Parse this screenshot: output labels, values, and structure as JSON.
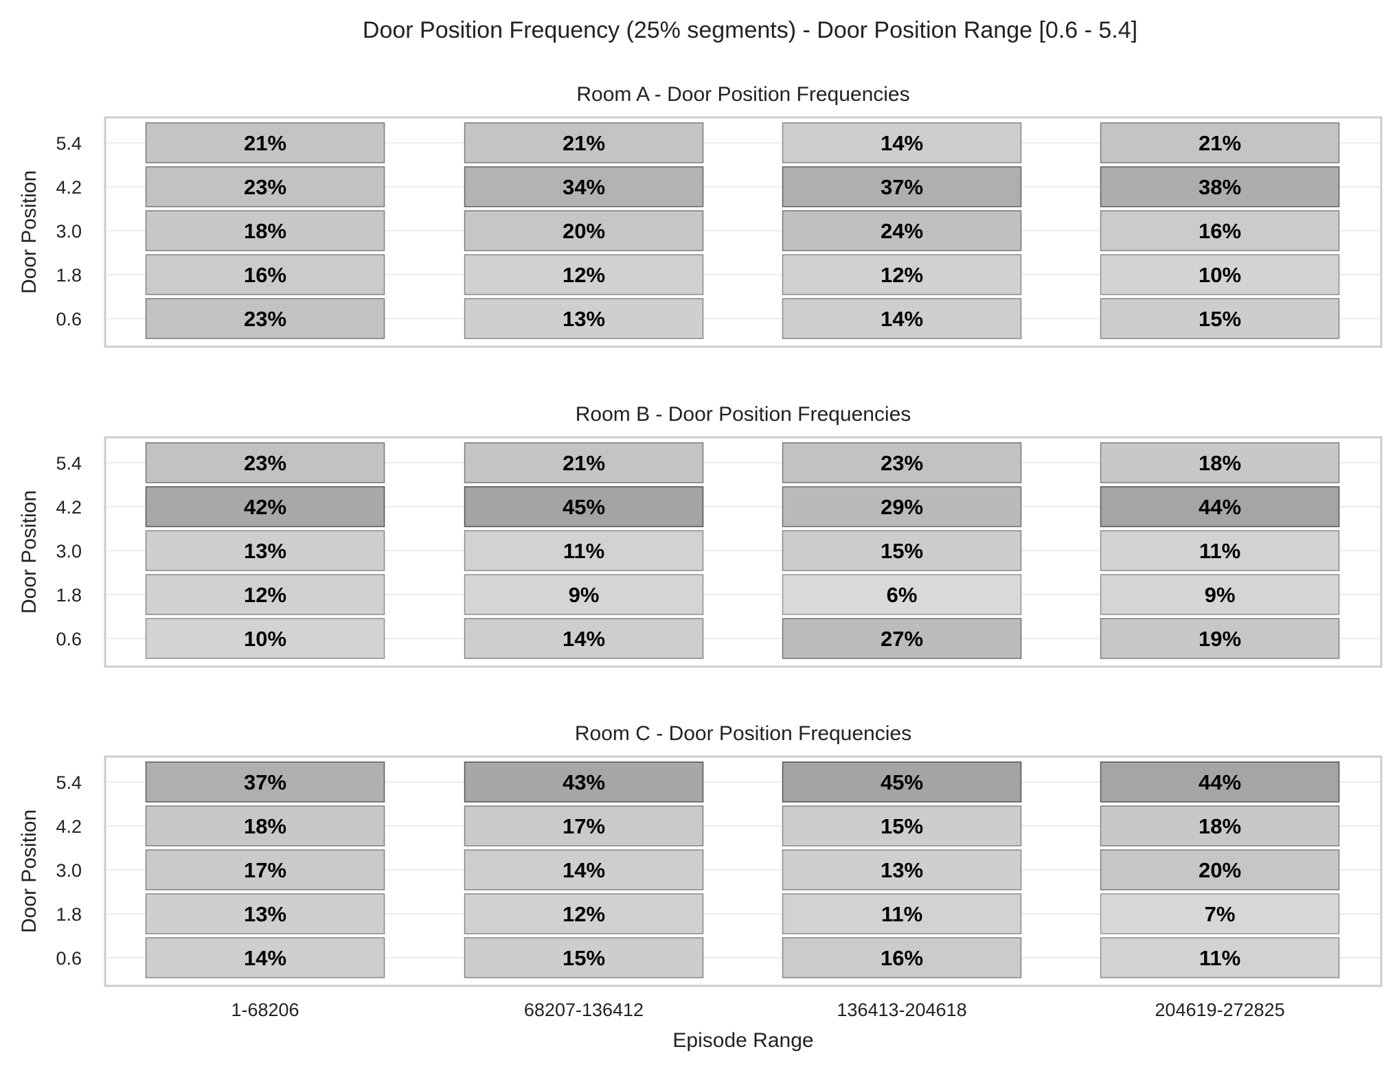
{
  "title": "Door Position Frequency (25% segments) - Door Position Range [0.6 - 5.4]",
  "xlabel": "Episode Range",
  "ylabel": "Door Position",
  "chart_data": [
    {
      "type": "heatmap",
      "title": "Room A - Door Position Frequencies",
      "categories": [
        "1-68206",
        "68207-136412",
        "136413-204618",
        "204619-272825"
      ],
      "y": [
        "5.4",
        "4.2",
        "3.0",
        "1.8",
        "0.6"
      ],
      "values": [
        [
          21,
          21,
          14,
          21
        ],
        [
          23,
          34,
          37,
          38
        ],
        [
          18,
          20,
          24,
          16
        ],
        [
          16,
          12,
          12,
          10
        ],
        [
          23,
          13,
          14,
          15
        ]
      ],
      "unit": "%",
      "xlabel": "Episode Range",
      "ylabel": "Door Position",
      "grid": true
    },
    {
      "type": "heatmap",
      "title": "Room B - Door Position Frequencies",
      "categories": [
        "1-68206",
        "68207-136412",
        "136413-204618",
        "204619-272825"
      ],
      "y": [
        "5.4",
        "4.2",
        "3.0",
        "1.8",
        "0.6"
      ],
      "values": [
        [
          23,
          21,
          23,
          18
        ],
        [
          42,
          45,
          29,
          44
        ],
        [
          13,
          11,
          15,
          11
        ],
        [
          12,
          9,
          6,
          9
        ],
        [
          10,
          14,
          27,
          19
        ]
      ],
      "unit": "%",
      "xlabel": "Episode Range",
      "ylabel": "Door Position",
      "grid": true
    },
    {
      "type": "heatmap",
      "title": "Room C - Door Position Frequencies",
      "categories": [
        "1-68206",
        "68207-136412",
        "136413-204618",
        "204619-272825"
      ],
      "y": [
        "5.4",
        "4.2",
        "3.0",
        "1.8",
        "0.6"
      ],
      "values": [
        [
          37,
          43,
          45,
          44
        ],
        [
          18,
          17,
          15,
          18
        ],
        [
          17,
          14,
          13,
          20
        ],
        [
          13,
          12,
          11,
          7
        ],
        [
          14,
          15,
          16,
          11
        ]
      ],
      "unit": "%",
      "xlabel": "Episode Range",
      "ylabel": "Door Position",
      "grid": true
    }
  ]
}
